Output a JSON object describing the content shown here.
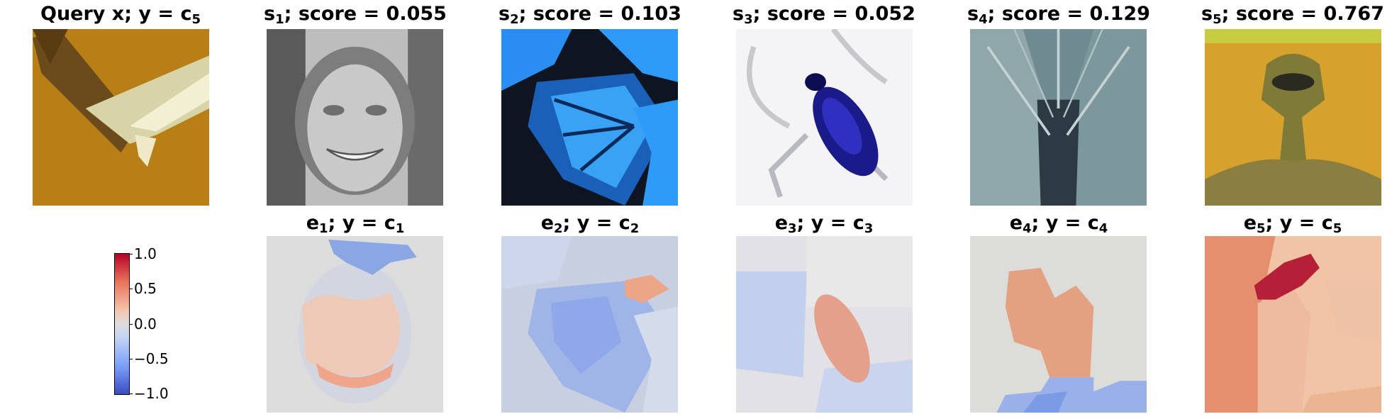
{
  "query": {
    "name": "Query x",
    "class_symbol": "c",
    "class_index": "5"
  },
  "samples": [
    {
      "symbol": "s",
      "index": "1",
      "score_label": "score",
      "score": "0.055"
    },
    {
      "symbol": "s",
      "index": "2",
      "score_label": "score",
      "score": "0.103"
    },
    {
      "symbol": "s",
      "index": "3",
      "score_label": "score",
      "score": "0.052"
    },
    {
      "symbol": "s",
      "index": "4",
      "score_label": "score",
      "score": "0.129"
    },
    {
      "symbol": "s",
      "index": "5",
      "score_label": "score",
      "score": "0.767"
    }
  ],
  "explanations": [
    {
      "symbol": "e",
      "index": "1",
      "class_symbol": "c",
      "class_index": "1"
    },
    {
      "symbol": "e",
      "index": "2",
      "class_symbol": "c",
      "class_index": "2"
    },
    {
      "symbol": "e",
      "index": "3",
      "class_symbol": "c",
      "class_index": "3"
    },
    {
      "symbol": "e",
      "index": "4",
      "class_symbol": "c",
      "class_index": "4"
    },
    {
      "symbol": "e",
      "index": "5",
      "class_symbol": "c",
      "class_index": "5"
    }
  ],
  "colorbar": {
    "colormap": "coolwarm",
    "ticks": [
      "1.0",
      "0.5",
      "0.0",
      "−0.5",
      "−1.0"
    ]
  }
}
